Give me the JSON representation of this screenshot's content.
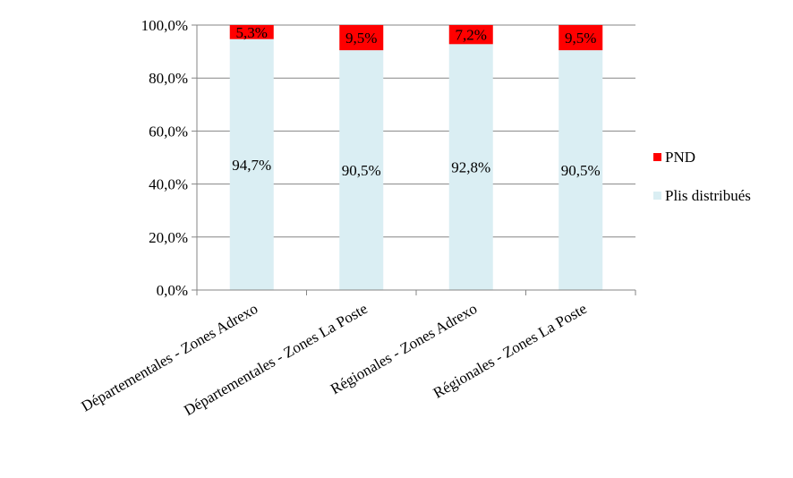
{
  "chart_data": {
    "type": "bar",
    "stacked": true,
    "categories": [
      "Départementales - Zones Adrexo",
      "Départementales - Zones La Poste",
      "Régionales - Zones Adrexo",
      "Régionales - Zones La Poste"
    ],
    "series": [
      {
        "name": "Plis distribués",
        "color": "#daeef3",
        "values": [
          94.7,
          90.5,
          92.8,
          90.5
        ],
        "labels": [
          "94,7%",
          "90,5%",
          "92,8%",
          "90,5%"
        ]
      },
      {
        "name": "PND",
        "color": "#ff0000",
        "values": [
          5.3,
          9.5,
          7.2,
          9.5
        ],
        "labels": [
          "5,3%",
          "9,5%",
          "7,2%",
          "9,5%"
        ]
      }
    ],
    "ylim": [
      0,
      100
    ],
    "yticks": [
      0,
      20,
      40,
      60,
      80,
      100
    ],
    "ytick_labels": [
      "0,0%",
      "20,0%",
      "40,0%",
      "60,0%",
      "80,0%",
      "100,0%"
    ],
    "grid": true,
    "legend": {
      "placement": "right",
      "entries": [
        "PND",
        "Plis distribués"
      ]
    },
    "title": "",
    "xlabel": "",
    "ylabel": ""
  }
}
